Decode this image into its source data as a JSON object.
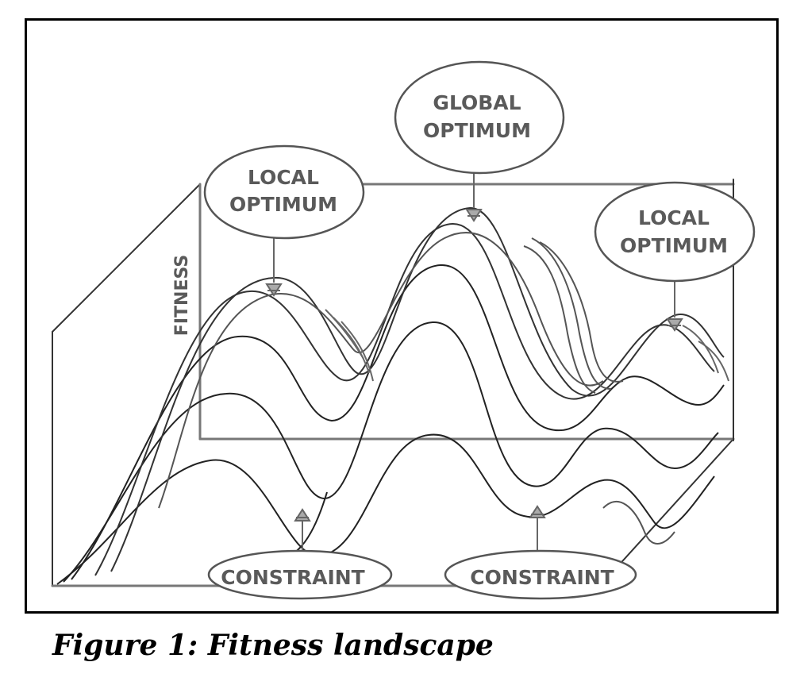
{
  "figure": {
    "labels": {
      "local_optimum_left": [
        "LOCAL",
        "OPTIMUM"
      ],
      "global_optimum": [
        "GLOBAL",
        "OPTIMUM"
      ],
      "local_optimum_right": [
        "LOCAL",
        "OPTIMUM"
      ],
      "fitness_axis": "FITNESS",
      "constraint_left": "CONSTRAINT",
      "constraint_right": "CONSTRAINT"
    },
    "caption": "Figure 1: Fitness landscape"
  }
}
